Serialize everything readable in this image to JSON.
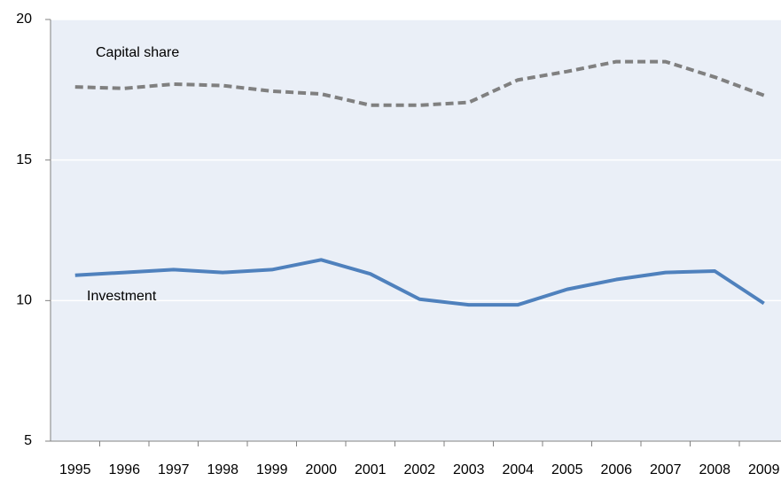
{
  "chart_data": {
    "type": "line",
    "categories": [
      "1995",
      "1996",
      "1997",
      "1998",
      "1999",
      "2000",
      "2001",
      "2002",
      "2003",
      "2004",
      "2005",
      "2006",
      "2007",
      "2008",
      "2009"
    ],
    "series": [
      {
        "name": "Capital share",
        "color": "#808080",
        "dashed": true,
        "values": [
          17.6,
          17.55,
          17.7,
          17.65,
          17.45,
          17.35,
          16.95,
          16.95,
          17.05,
          17.85,
          18.15,
          18.5,
          18.5,
          17.95,
          17.3
        ]
      },
      {
        "name": "Investment",
        "color": "#4f81bd",
        "dashed": false,
        "values": [
          10.9,
          11.0,
          11.1,
          11.0,
          11.1,
          11.45,
          10.95,
          10.05,
          9.85,
          9.85,
          10.4,
          10.75,
          11.0,
          11.05,
          9.9
        ]
      }
    ],
    "ylim": [
      5,
      20
    ],
    "yticks": [
      5,
      10,
      15,
      20
    ],
    "grid": true
  }
}
